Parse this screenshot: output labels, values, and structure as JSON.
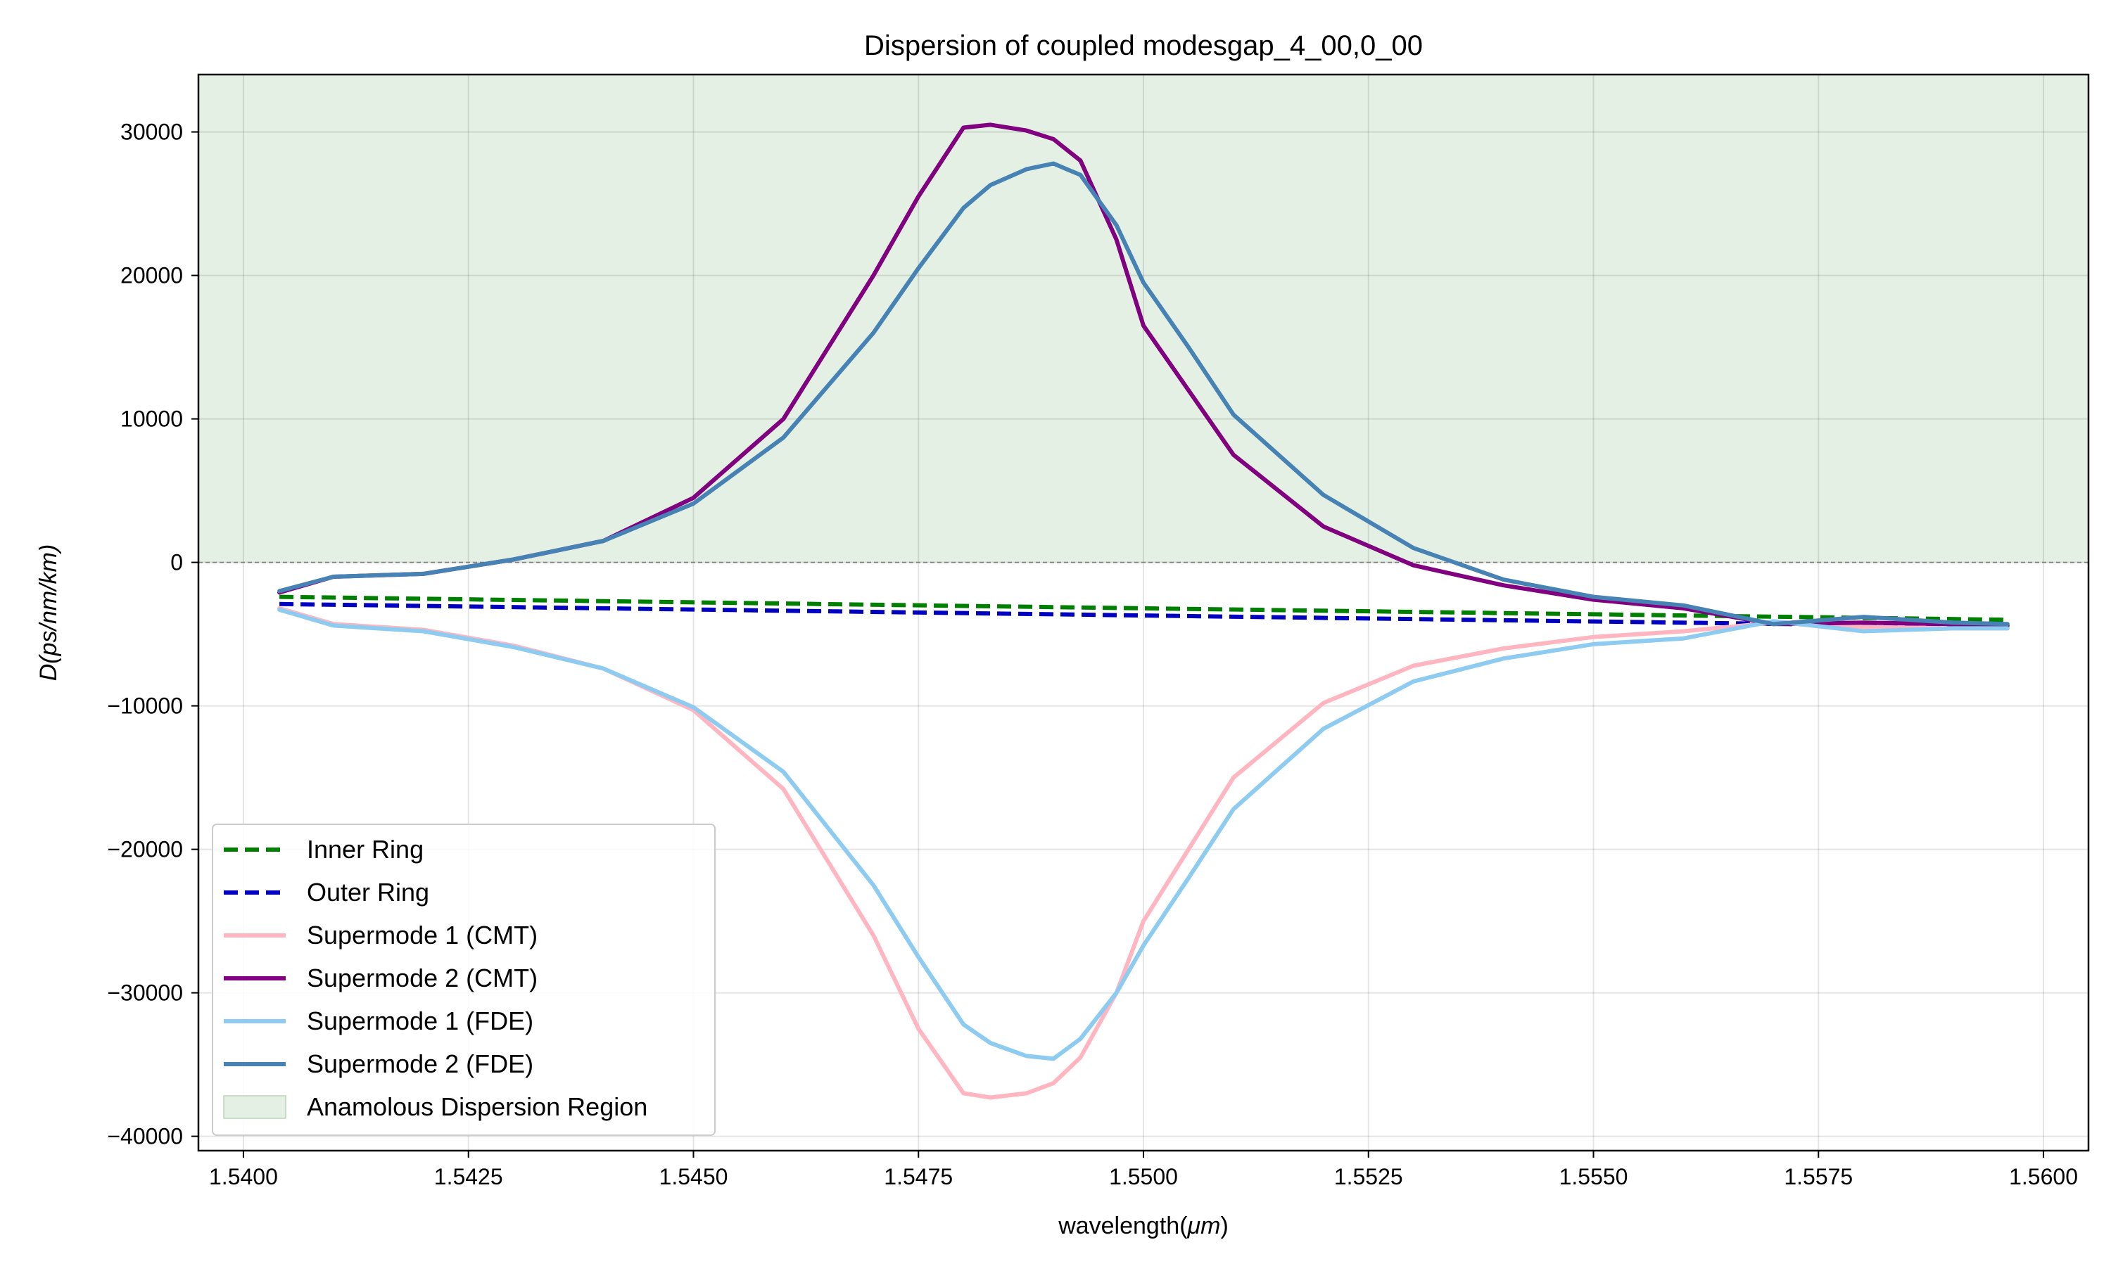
{
  "chart_data": {
    "type": "line",
    "title": "Dispersion of coupled modesgap_4_00,0_00",
    "xlabel_main": "wavelength(",
    "xlabel_unit": "μm",
    "xlabel_close": ")",
    "ylabel_text": "D(ps/nm/km)",
    "xlim": [
      1.5395,
      1.5605
    ],
    "ylim": [
      -41000,
      34000
    ],
    "grid": true,
    "legend_position": "lower-left",
    "x_ticks": [
      1.54,
      1.5425,
      1.545,
      1.5475,
      1.55,
      1.5525,
      1.555,
      1.5575,
      1.56
    ],
    "x_tick_labels": [
      "1.5400",
      "1.5425",
      "1.5450",
      "1.5475",
      "1.5500",
      "1.5525",
      "1.5550",
      "1.5575",
      "1.5600"
    ],
    "y_ticks": [
      -40000,
      -30000,
      -20000,
      -10000,
      0,
      10000,
      20000,
      30000
    ],
    "y_tick_labels": [
      "−40000",
      "−30000",
      "−20000",
      "−10000",
      "0",
      "10000",
      "20000",
      "30000"
    ],
    "anomalous_region": {
      "label": "Anamolous Dispersion Region",
      "y_from": 0,
      "color": "#e3f0e3"
    },
    "series": [
      {
        "name": "Inner Ring",
        "color": "#008000",
        "dash": true,
        "x": [
          1.5404,
          1.5596
        ],
        "y": [
          -2400,
          -4000
        ]
      },
      {
        "name": "Outer Ring",
        "color": "#0000c0",
        "dash": true,
        "x": [
          1.5404,
          1.5596
        ],
        "y": [
          -2900,
          -4500
        ]
      },
      {
        "name": "Supermode 1 (CMT)",
        "color": "#ffb6c1",
        "dash": false,
        "x": [
          1.5404,
          1.541,
          1.542,
          1.543,
          1.544,
          1.545,
          1.546,
          1.547,
          1.5475,
          1.548,
          1.5483,
          1.5487,
          1.549,
          1.5493,
          1.5497,
          1.55,
          1.5505,
          1.551,
          1.552,
          1.553,
          1.554,
          1.555,
          1.556,
          1.557,
          1.558,
          1.559,
          1.5596
        ],
        "y": [
          -3200,
          -4300,
          -4700,
          -5800,
          -7400,
          -10300,
          -15800,
          -26000,
          -32500,
          -37000,
          -37300,
          -37000,
          -36300,
          -34500,
          -30000,
          -25000,
          -20000,
          -15000,
          -9800,
          -7200,
          -6000,
          -5200,
          -4800,
          -4200,
          -4500,
          -4600,
          -4600
        ]
      },
      {
        "name": "Supermode 2 (CMT)",
        "color": "#800080",
        "dash": false,
        "x": [
          1.5404,
          1.541,
          1.542,
          1.543,
          1.544,
          1.545,
          1.546,
          1.547,
          1.5475,
          1.548,
          1.5483,
          1.5487,
          1.549,
          1.5493,
          1.5497,
          1.55,
          1.5505,
          1.551,
          1.552,
          1.553,
          1.554,
          1.555,
          1.556,
          1.557,
          1.558,
          1.559,
          1.5596
        ],
        "y": [
          -2100,
          -1000,
          -800,
          200,
          1500,
          4500,
          10000,
          20000,
          25500,
          30300,
          30500,
          30100,
          29500,
          28000,
          22500,
          16500,
          12000,
          7500,
          2500,
          -200,
          -1600,
          -2600,
          -3200,
          -4300,
          -4200,
          -4300,
          -4400
        ]
      },
      {
        "name": "Supermode 1 (FDE)",
        "color": "#8ecbf0",
        "dash": false,
        "x": [
          1.5404,
          1.541,
          1.542,
          1.543,
          1.544,
          1.545,
          1.546,
          1.547,
          1.5475,
          1.548,
          1.5483,
          1.5487,
          1.549,
          1.5493,
          1.5497,
          1.55,
          1.5505,
          1.551,
          1.552,
          1.553,
          1.554,
          1.555,
          1.556,
          1.557,
          1.558,
          1.559,
          1.5596
        ],
        "y": [
          -3300,
          -4400,
          -4800,
          -5900,
          -7400,
          -10100,
          -14600,
          -22500,
          -27500,
          -32200,
          -33500,
          -34400,
          -34600,
          -33200,
          -30000,
          -26700,
          -22000,
          -17200,
          -11600,
          -8300,
          -6700,
          -5700,
          -5300,
          -4100,
          -4800,
          -4600,
          -4600
        ]
      },
      {
        "name": "Supermode 2 (FDE)",
        "color": "#4682b4",
        "dash": false,
        "x": [
          1.5404,
          1.541,
          1.542,
          1.543,
          1.544,
          1.545,
          1.546,
          1.547,
          1.5475,
          1.548,
          1.5483,
          1.5487,
          1.549,
          1.5493,
          1.5497,
          1.55,
          1.5505,
          1.551,
          1.552,
          1.553,
          1.554,
          1.555,
          1.556,
          1.557,
          1.558,
          1.559,
          1.5596
        ],
        "y": [
          -2000,
          -1000,
          -800,
          200,
          1500,
          4100,
          8700,
          16000,
          20500,
          24700,
          26300,
          27400,
          27800,
          27000,
          23500,
          19500,
          15000,
          10300,
          4700,
          1000,
          -1200,
          -2400,
          -3000,
          -4300,
          -3800,
          -4200,
          -4300
        ]
      }
    ]
  }
}
